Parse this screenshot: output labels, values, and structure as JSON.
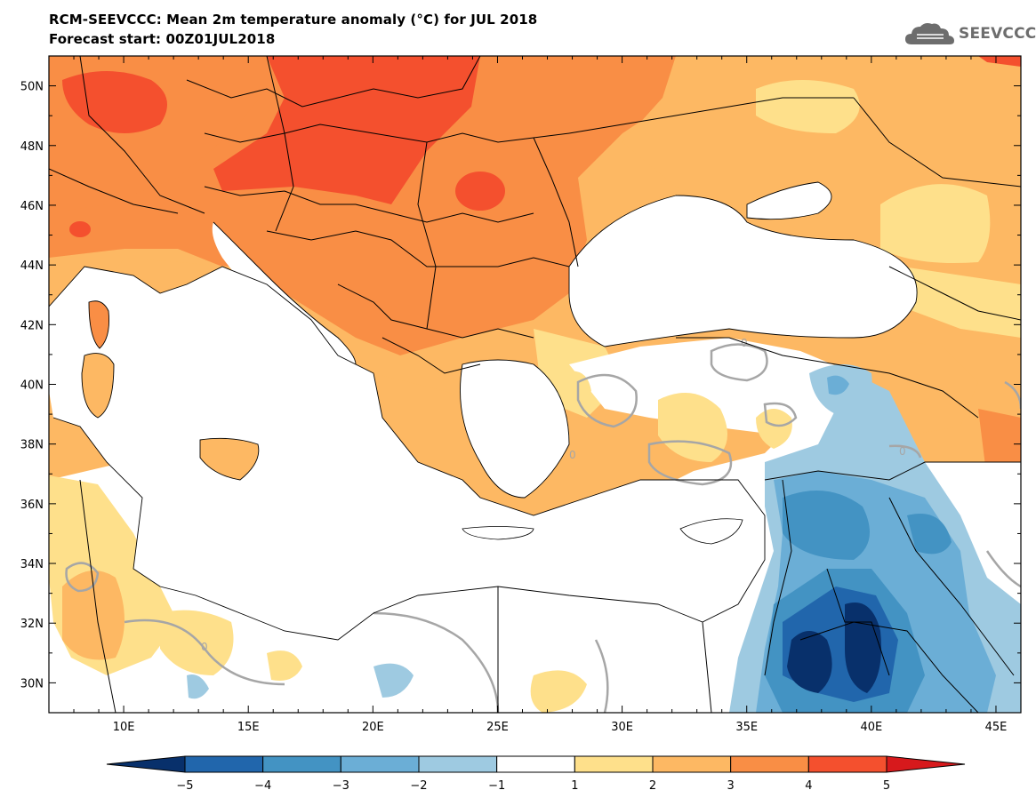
{
  "header": {
    "title": "RCM-SEEVCCC: Mean 2m temperature anomaly (°C) for JUL 2018",
    "subtitle": "Forecast start: 00Z01JUL2018"
  },
  "logo": {
    "text": "SEEVCCC",
    "icon": "cloud-icon",
    "color": "#6d6d6d"
  },
  "map": {
    "lon_range": [
      7,
      46
    ],
    "lat_range": [
      29,
      51
    ],
    "lon_ticks": [
      {
        "value": 10,
        "label": "10E"
      },
      {
        "value": 15,
        "label": "15E"
      },
      {
        "value": 20,
        "label": "20E"
      },
      {
        "value": 25,
        "label": "25E"
      },
      {
        "value": 30,
        "label": "30E"
      },
      {
        "value": 35,
        "label": "35E"
      },
      {
        "value": 40,
        "label": "40E"
      },
      {
        "value": 45,
        "label": "45E"
      }
    ],
    "lat_ticks": [
      {
        "value": 50,
        "label": "50N"
      },
      {
        "value": 48,
        "label": "48N"
      },
      {
        "value": 46,
        "label": "46N"
      },
      {
        "value": 44,
        "label": "44N"
      },
      {
        "value": 42,
        "label": "42N"
      },
      {
        "value": 40,
        "label": "40N"
      },
      {
        "value": 38,
        "label": "38N"
      },
      {
        "value": 36,
        "label": "36N"
      },
      {
        "value": 34,
        "label": "34N"
      },
      {
        "value": 32,
        "label": "32N"
      },
      {
        "value": 30,
        "label": "30N"
      }
    ],
    "zero_contour_label": "0"
  },
  "colorbar": {
    "ticks": [
      "−5",
      "−4",
      "−3",
      "−2",
      "−1",
      "1",
      "2",
      "3",
      "4",
      "5"
    ],
    "colors": [
      "#08306b",
      "#2166ac",
      "#4393c3",
      "#6baed6",
      "#9ecae1",
      "#ffffff",
      "#fee08b",
      "#fdb863",
      "#f98e45",
      "#f4502e",
      "#d7191c"
    ]
  }
}
